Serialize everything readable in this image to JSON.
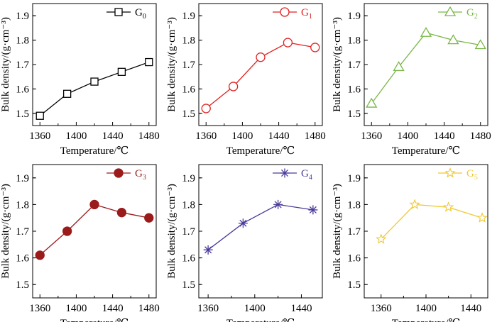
{
  "chart_data": [
    {
      "type": "line",
      "xlabel": "Temperature/℃",
      "ylabel": "Bulk density/(g·cm⁻³)",
      "xlim": [
        1360,
        1480
      ],
      "ylim": [
        1.45,
        1.95
      ],
      "xticks": [
        "1360",
        "1400",
        "1440",
        "1480"
      ],
      "yticks": [
        "1.5",
        "1.6",
        "1.7",
        "1.8",
        "1.9"
      ],
      "legend_position": "top-right",
      "series": [
        {
          "name": "G",
          "subscript": "0",
          "color": "#000000",
          "marker": "square",
          "fill": "none",
          "x": [
            1360,
            1390,
            1420,
            1450,
            1480
          ],
          "y": [
            1.49,
            1.58,
            1.63,
            1.67,
            1.71
          ]
        }
      ]
    },
    {
      "type": "line",
      "xlabel": "Temperature/℃",
      "ylabel": "Bulk density/(g·cm⁻³)",
      "xlim": [
        1360,
        1480
      ],
      "ylim": [
        1.45,
        1.95
      ],
      "xticks": [
        "1360",
        "1400",
        "1440",
        "1480"
      ],
      "yticks": [
        "1.5",
        "1.6",
        "1.7",
        "1.8",
        "1.9"
      ],
      "legend_position": "top-right",
      "series": [
        {
          "name": "G",
          "subscript": "1",
          "color": "#e02020",
          "marker": "circle",
          "fill": "none",
          "x": [
            1360,
            1390,
            1420,
            1450,
            1480
          ],
          "y": [
            1.52,
            1.61,
            1.73,
            1.79,
            1.77
          ]
        }
      ]
    },
    {
      "type": "line",
      "xlabel": "Temperature/℃",
      "ylabel": "Bulk density/(g·cm⁻³)",
      "xlim": [
        1360,
        1480
      ],
      "ylim": [
        1.45,
        1.95
      ],
      "xticks": [
        "1360",
        "1400",
        "1440",
        "1480"
      ],
      "yticks": [
        "1.5",
        "1.6",
        "1.7",
        "1.8",
        "1.9"
      ],
      "legend_position": "top-right",
      "series": [
        {
          "name": "G",
          "subscript": "2",
          "color": "#7ab648",
          "marker": "triangle",
          "fill": "none",
          "x": [
            1360,
            1390,
            1420,
            1450,
            1480
          ],
          "y": [
            1.54,
            1.69,
            1.83,
            1.8,
            1.78
          ]
        }
      ]
    },
    {
      "type": "line",
      "xlabel": "Temperature/℃",
      "ylabel": "Bulk density/(g·cm⁻³)",
      "xlim": [
        1360,
        1480
      ],
      "ylim": [
        1.45,
        1.95
      ],
      "xticks": [
        "1360",
        "1400",
        "1440",
        "1480"
      ],
      "yticks": [
        "1.5",
        "1.6",
        "1.7",
        "1.8",
        "1.9"
      ],
      "legend_position": "top-right",
      "series": [
        {
          "name": "G",
          "subscript": "3",
          "color": "#9b1b1b",
          "marker": "circle",
          "fill": "solid",
          "x": [
            1360,
            1390,
            1420,
            1450,
            1480
          ],
          "y": [
            1.61,
            1.7,
            1.8,
            1.77,
            1.75
          ]
        }
      ]
    },
    {
      "type": "line",
      "xlabel": "Temperature/℃",
      "ylabel": "Bulk density/(g·cm⁻³)",
      "xlim": [
        1360,
        1450
      ],
      "ylim": [
        1.45,
        1.95
      ],
      "xticks": [
        "1360",
        "1400",
        "1440"
      ],
      "yticks": [
        "1.5",
        "1.6",
        "1.7",
        "1.8",
        "1.9"
      ],
      "legend_position": "top-right",
      "series": [
        {
          "name": "G",
          "subscript": "4",
          "color": "#4a3a9a",
          "marker": "asterisk",
          "fill": "none",
          "x": [
            1360,
            1390,
            1420,
            1450
          ],
          "y": [
            1.63,
            1.73,
            1.8,
            1.78
          ]
        }
      ]
    },
    {
      "type": "line",
      "xlabel": "Temperature/℃",
      "ylabel": "Bulk density/(g·cm⁻³)",
      "xlim": [
        1360,
        1450
      ],
      "ylim": [
        1.45,
        1.95
      ],
      "xticks": [
        "1360",
        "1400",
        "1440"
      ],
      "yticks": [
        "1.5",
        "1.6",
        "1.7",
        "1.8",
        "1.9"
      ],
      "legend_position": "top-right",
      "series": [
        {
          "name": "G",
          "subscript": "5",
          "color": "#f0c830",
          "marker": "star",
          "fill": "none",
          "x": [
            1360,
            1390,
            1420,
            1450
          ],
          "y": [
            1.67,
            1.8,
            1.79,
            1.75
          ]
        }
      ]
    }
  ]
}
